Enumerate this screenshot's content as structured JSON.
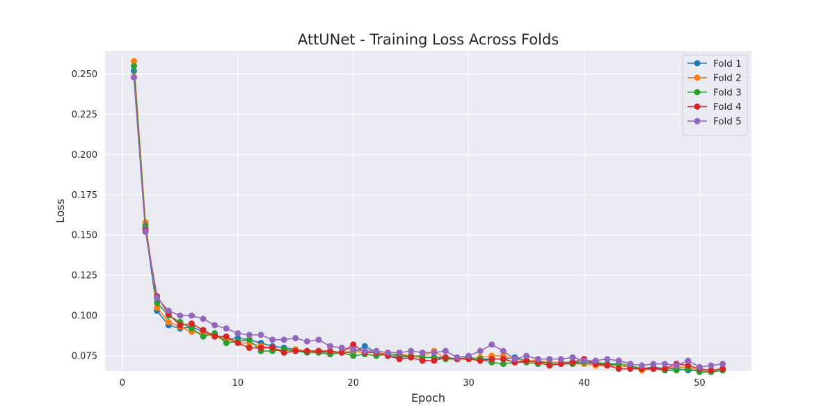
{
  "chart_data": {
    "type": "line",
    "title": "AttUNet - Training Loss Across Folds",
    "xlabel": "Epoch",
    "ylabel": "Loss",
    "xlim": [
      -1.5,
      54.5
    ],
    "ylim": [
      0.0655,
      0.2645
    ],
    "xticks": [
      0,
      10,
      20,
      30,
      40,
      50
    ],
    "yticks": [
      0.075,
      0.1,
      0.125,
      0.15,
      0.175,
      0.2,
      0.225,
      0.25
    ],
    "ytick_labels": [
      "0.075",
      "0.100",
      "0.125",
      "0.150",
      "0.175",
      "0.200",
      "0.225",
      "0.250"
    ],
    "grid": true,
    "legend_position": "top-right",
    "x": [
      1,
      2,
      3,
      4,
      5,
      6,
      7,
      8,
      9,
      10,
      11,
      12,
      13,
      14,
      15,
      16,
      17,
      18,
      19,
      20,
      21,
      22,
      23,
      24,
      25,
      26,
      27,
      28,
      29,
      30,
      31,
      32,
      33,
      34,
      35,
      36,
      37,
      38,
      39,
      40,
      41,
      42,
      43,
      44,
      45,
      46,
      47,
      48,
      49,
      50,
      51,
      52
    ],
    "series": [
      {
        "name": "Fold 1",
        "color": "#1f77b4",
        "values": [
          0.252,
          0.154,
          0.103,
          0.094,
          0.092,
          0.093,
          0.09,
          0.088,
          0.085,
          0.086,
          0.085,
          0.083,
          0.081,
          0.08,
          0.079,
          0.078,
          0.078,
          0.077,
          0.077,
          0.077,
          0.081,
          0.077,
          0.075,
          0.074,
          0.075,
          0.074,
          0.074,
          0.074,
          0.073,
          0.074,
          0.073,
          0.073,
          0.073,
          0.074,
          0.072,
          0.071,
          0.071,
          0.071,
          0.071,
          0.071,
          0.07,
          0.07,
          0.069,
          0.068,
          0.067,
          0.068,
          0.067,
          0.067,
          0.066,
          0.066,
          0.065,
          0.066
        ]
      },
      {
        "name": "Fold 2",
        "color": "#ff7f0e",
        "values": [
          0.258,
          0.158,
          0.105,
          0.096,
          0.093,
          0.09,
          0.089,
          0.087,
          0.085,
          0.083,
          0.083,
          0.081,
          0.08,
          0.078,
          0.079,
          0.078,
          0.077,
          0.077,
          0.077,
          0.078,
          0.077,
          0.077,
          0.076,
          0.076,
          0.075,
          0.075,
          0.078,
          0.073,
          0.073,
          0.073,
          0.074,
          0.075,
          0.075,
          0.073,
          0.072,
          0.072,
          0.071,
          0.071,
          0.07,
          0.07,
          0.069,
          0.069,
          0.069,
          0.068,
          0.066,
          0.067,
          0.067,
          0.068,
          0.068,
          0.066,
          0.065,
          0.066
        ]
      },
      {
        "name": "Fold 3",
        "color": "#2ca02c",
        "values": [
          0.255,
          0.156,
          0.108,
          0.1,
          0.096,
          0.092,
          0.087,
          0.089,
          0.083,
          0.084,
          0.085,
          0.078,
          0.078,
          0.079,
          0.078,
          0.077,
          0.077,
          0.076,
          0.077,
          0.075,
          0.076,
          0.075,
          0.076,
          0.075,
          0.075,
          0.074,
          0.074,
          0.073,
          0.073,
          0.074,
          0.073,
          0.071,
          0.07,
          0.071,
          0.071,
          0.07,
          0.07,
          0.07,
          0.07,
          0.071,
          0.071,
          0.07,
          0.07,
          0.069,
          0.067,
          0.067,
          0.066,
          0.066,
          0.067,
          0.065,
          0.065,
          0.066
        ]
      },
      {
        "name": "Fold 4",
        "color": "#d62728",
        "values": [
          0.248,
          0.153,
          0.112,
          0.101,
          0.094,
          0.095,
          0.091,
          0.087,
          0.087,
          0.083,
          0.08,
          0.08,
          0.08,
          0.077,
          0.078,
          0.078,
          0.078,
          0.078,
          0.077,
          0.082,
          0.077,
          0.077,
          0.075,
          0.073,
          0.074,
          0.072,
          0.072,
          0.074,
          0.073,
          0.073,
          0.072,
          0.073,
          0.073,
          0.071,
          0.072,
          0.071,
          0.069,
          0.07,
          0.071,
          0.073,
          0.07,
          0.069,
          0.067,
          0.067,
          0.067,
          0.067,
          0.067,
          0.07,
          0.069,
          0.067,
          0.066,
          0.067
        ]
      },
      {
        "name": "Fold 5",
        "color": "#9467bd",
        "values": [
          0.248,
          0.152,
          0.111,
          0.103,
          0.1,
          0.1,
          0.098,
          0.094,
          0.092,
          0.089,
          0.088,
          0.088,
          0.085,
          0.085,
          0.086,
          0.084,
          0.085,
          0.081,
          0.08,
          0.079,
          0.078,
          0.078,
          0.077,
          0.077,
          0.078,
          0.077,
          0.077,
          0.078,
          0.074,
          0.075,
          0.078,
          0.082,
          0.078,
          0.073,
          0.075,
          0.073,
          0.073,
          0.073,
          0.074,
          0.072,
          0.072,
          0.073,
          0.072,
          0.07,
          0.069,
          0.07,
          0.07,
          0.069,
          0.072,
          0.068,
          0.069,
          0.07
        ]
      }
    ]
  }
}
